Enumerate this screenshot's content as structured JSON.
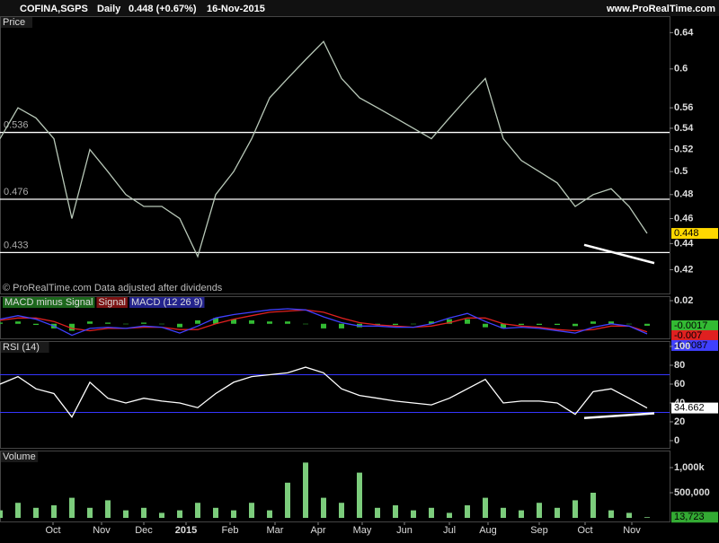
{
  "header": {
    "symbol": "COFINA,SGPS",
    "period": "Daily",
    "quote": "0.448 (+0.67%)",
    "date": "16-Nov-2015",
    "site": "www.ProRealTime.com"
  },
  "chart_data": [
    {
      "type": "line",
      "title": "Price",
      "note": "© ProRealTime.com  Data adjusted after dividends",
      "color": "#b8c8b8",
      "tag_color": "#ffd800",
      "log_scale": true,
      "xlim": [
        0,
        37.25
      ],
      "ylim": [
        0.402,
        0.659
      ],
      "yticks": [
        0.42,
        0.44,
        0.46,
        0.48,
        0.5,
        0.52,
        0.54,
        0.56,
        0.6,
        0.64
      ],
      "levels": [
        0.536,
        0.476,
        0.433
      ],
      "values": [
        0.53,
        0.56,
        0.55,
        0.53,
        0.46,
        0.52,
        0.5,
        0.48,
        0.47,
        0.47,
        0.46,
        0.43,
        0.48,
        0.5,
        0.53,
        0.57,
        0.59,
        0.61,
        0.63,
        0.59,
        0.57,
        0.56,
        0.55,
        0.54,
        0.53,
        0.55,
        0.57,
        0.59,
        0.53,
        0.51,
        0.5,
        0.49,
        0.47,
        0.48,
        0.485,
        0.47,
        0.448
      ],
      "trendline": {
        "x": [
          32.5,
          36.4
        ],
        "values": [
          0.439,
          0.425
        ]
      }
    },
    {
      "type": "line",
      "xlim": [
        0,
        37.25
      ],
      "ylim": [
        -0.0134,
        0.0239
      ],
      "yticks": [
        0.02
      ],
      "series": [
        {
          "name": "MACD minus Signal",
          "kind": "bar",
          "color": "#33bb33",
          "values": [
            0.001,
            0.002,
            -0.001,
            -0.004,
            -0.006,
            0.002,
            0.001,
            0,
            0.001,
            0,
            -0.003,
            0.003,
            0.005,
            0.004,
            0.003,
            0.002,
            0.002,
            0,
            -0.004,
            -0.004,
            -0.003,
            -0.001,
            -0.001,
            0,
            0.002,
            0.004,
            0.004,
            -0.003,
            -0.004,
            -0.001,
            -0.001,
            -0.001,
            -0.002,
            0.002,
            0.002,
            0,
            -0.0017
          ]
        },
        {
          "name": "Signal",
          "kind": "line",
          "color": "#e02020",
          "values": [
            0.003,
            0.005,
            0.005,
            0.002,
            -0.004,
            -0.006,
            -0.004,
            -0.004,
            -0.003,
            -0.003,
            -0.005,
            -0.005,
            0.0,
            0.004,
            0.007,
            0.01,
            0.011,
            0.012,
            0.01,
            0.005,
            0.001,
            -0.001,
            -0.002,
            -0.003,
            -0.002,
            0.001,
            0.005,
            0.005,
            0.0,
            -0.002,
            -0.003,
            -0.005,
            -0.006,
            -0.005,
            -0.002,
            -0.002,
            -0.007
          ]
        },
        {
          "name": "MACD (12 26 9)",
          "kind": "line",
          "color": "#4040ff",
          "values": [
            0.004,
            0.007,
            0.004,
            -0.002,
            -0.01,
            -0.004,
            -0.003,
            -0.004,
            -0.002,
            -0.003,
            -0.008,
            -0.002,
            0.005,
            0.008,
            0.01,
            0.012,
            0.013,
            0.012,
            0.006,
            0.001,
            -0.002,
            -0.002,
            -0.003,
            -0.003,
            0.0,
            0.005,
            0.009,
            0.002,
            -0.004,
            -0.003,
            -0.004,
            -0.006,
            -0.008,
            -0.003,
            0.0,
            -0.002,
            -0.0087
          ]
        }
      ]
    },
    {
      "type": "line",
      "title": "RSI (14)",
      "color": "#ffffff",
      "tag_color": "#ffffff",
      "xlim": [
        0,
        37.25
      ],
      "ylim": [
        -8.6,
        105.7
      ],
      "yticks": [
        0,
        20,
        40,
        60,
        80,
        100
      ],
      "bands": [
        30,
        70
      ],
      "values": [
        60,
        68,
        55,
        50,
        25,
        62,
        45,
        40,
        45,
        42,
        40,
        35,
        50,
        62,
        68,
        70,
        72,
        78,
        72,
        55,
        48,
        45,
        42,
        40,
        38,
        45,
        55,
        65,
        40,
        42,
        42,
        40,
        28,
        52,
        55,
        45,
        34.662
      ],
      "trendline": {
        "x": [
          32.5,
          36.4
        ],
        "values": [
          24,
          29
        ]
      }
    },
    {
      "type": "bar",
      "title": "Volume",
      "color": "#7ccc7c",
      "tag_color": "#33aa33",
      "xlim": [
        0,
        37.25
      ],
      "ylim": [
        -89000,
        1339000
      ],
      "yticks": [
        {
          "value": 500000,
          "label": "500,000"
        },
        {
          "value": 1000000,
          "label": "1,000k"
        }
      ],
      "values": [
        150000,
        300000,
        200000,
        250000,
        400000,
        200000,
        350000,
        150000,
        200000,
        100000,
        150000,
        300000,
        200000,
        150000,
        300000,
        150000,
        700000,
        1100000,
        400000,
        300000,
        900000,
        200000,
        250000,
        150000,
        200000,
        100000,
        250000,
        400000,
        200000,
        150000,
        300000,
        200000,
        350000,
        500000,
        150000,
        100000,
        13723
      ],
      "value_labels": [
        null,
        null,
        null,
        null,
        null,
        null,
        null,
        null,
        null,
        null,
        null,
        null,
        null,
        null,
        null,
        null,
        null,
        null,
        null,
        null,
        null,
        null,
        null,
        null,
        null,
        null,
        null,
        null,
        null,
        null,
        null,
        null,
        null,
        null,
        null,
        null,
        "13,723"
      ],
      "xticks": [
        {
          "value": 2.95,
          "label": "Oct"
        },
        {
          "value": 5.65,
          "label": "Nov"
        },
        {
          "value": 8.0,
          "label": "Dec"
        },
        {
          "value": 10.35,
          "label": "2015"
        },
        {
          "value": 12.8,
          "label": "Feb"
        },
        {
          "value": 15.3,
          "label": "Mar"
        },
        {
          "value": 17.7,
          "label": "Apr"
        },
        {
          "value": 20.15,
          "label": "May"
        },
        {
          "value": 22.5,
          "label": "Jun"
        },
        {
          "value": 25.0,
          "label": "Jul"
        },
        {
          "value": 27.15,
          "label": "Aug"
        },
        {
          "value": 30.0,
          "label": "Sep"
        },
        {
          "value": 32.55,
          "label": "Oct"
        },
        {
          "value": 35.15,
          "label": "Nov"
        }
      ]
    }
  ]
}
